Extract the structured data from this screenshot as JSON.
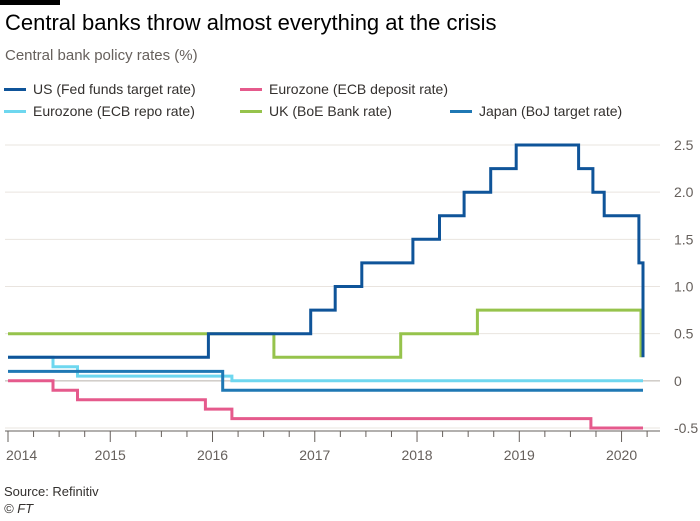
{
  "title": "Central banks throw almost everything at the crisis",
  "subtitle": "Central bank policy rates (%)",
  "source": "Source: Refinitiv",
  "credit": "© FT",
  "chart_data": {
    "type": "line",
    "ylim": [
      -0.5,
      2.6
    ],
    "xlim": [
      2014.0,
      2020.25
    ],
    "yticks": [
      {
        "value": 2.5,
        "label": "2.5"
      },
      {
        "value": 2.0,
        "label": "2.0"
      },
      {
        "value": 1.5,
        "label": "1.5"
      },
      {
        "value": 1.0,
        "label": "1.0"
      },
      {
        "value": 0.5,
        "label": "0.5"
      },
      {
        "value": 0.0,
        "label": "0"
      },
      {
        "value": -0.5,
        "label": "-0.5"
      }
    ],
    "xticks": [
      {
        "value": 2014,
        "label": "2014"
      },
      {
        "value": 2015,
        "label": "2015"
      },
      {
        "value": 2016,
        "label": "2016"
      },
      {
        "value": 2017,
        "label": "2017"
      },
      {
        "value": 2018,
        "label": "2018"
      },
      {
        "value": 2019,
        "label": "2019"
      },
      {
        "value": 2020,
        "label": "2020"
      }
    ],
    "grid": true,
    "legend_position": "top",
    "series": [
      {
        "name": "US (Fed funds target rate)",
        "color": "#0f5499",
        "step": true,
        "points": [
          [
            2014.0,
            0.25
          ],
          [
            2015.96,
            0.5
          ],
          [
            2016.96,
            0.75
          ],
          [
            2017.2,
            1.0
          ],
          [
            2017.46,
            1.25
          ],
          [
            2017.96,
            1.5
          ],
          [
            2018.22,
            1.75
          ],
          [
            2018.46,
            2.0
          ],
          [
            2018.72,
            2.25
          ],
          [
            2018.97,
            2.5
          ],
          [
            2019.58,
            2.25
          ],
          [
            2019.72,
            2.0
          ],
          [
            2019.83,
            1.75
          ],
          [
            2020.17,
            1.25
          ],
          [
            2020.21,
            0.25
          ]
        ]
      },
      {
        "name": "Eurozone (ECB deposit rate)",
        "color": "#e55a8c",
        "step": true,
        "points": [
          [
            2014.0,
            0.0
          ],
          [
            2014.44,
            -0.1
          ],
          [
            2014.68,
            -0.2
          ],
          [
            2015.93,
            -0.3
          ],
          [
            2016.19,
            -0.4
          ],
          [
            2019.7,
            -0.5
          ],
          [
            2020.21,
            -0.5
          ]
        ]
      },
      {
        "name": "Eurozone (ECB repo rate)",
        "color": "#6ed7ef",
        "step": true,
        "points": [
          [
            2014.0,
            0.25
          ],
          [
            2014.44,
            0.15
          ],
          [
            2014.68,
            0.05
          ],
          [
            2016.19,
            0.0
          ],
          [
            2020.21,
            0.0
          ]
        ]
      },
      {
        "name": "UK (BoE Bank rate)",
        "color": "#96c34c",
        "step": true,
        "points": [
          [
            2014.0,
            0.5
          ],
          [
            2016.6,
            0.25
          ],
          [
            2017.84,
            0.5
          ],
          [
            2018.59,
            0.75
          ],
          [
            2020.19,
            0.25
          ]
        ]
      },
      {
        "name": "Japan (BoJ target rate)",
        "color": "#1f78b4",
        "step": true,
        "points": [
          [
            2014.0,
            0.1
          ],
          [
            2016.1,
            -0.1
          ],
          [
            2020.21,
            -0.1
          ]
        ]
      }
    ]
  },
  "colors": {
    "grid": "#e9e4df",
    "axis": "#66605c",
    "text": "#33302e"
  }
}
